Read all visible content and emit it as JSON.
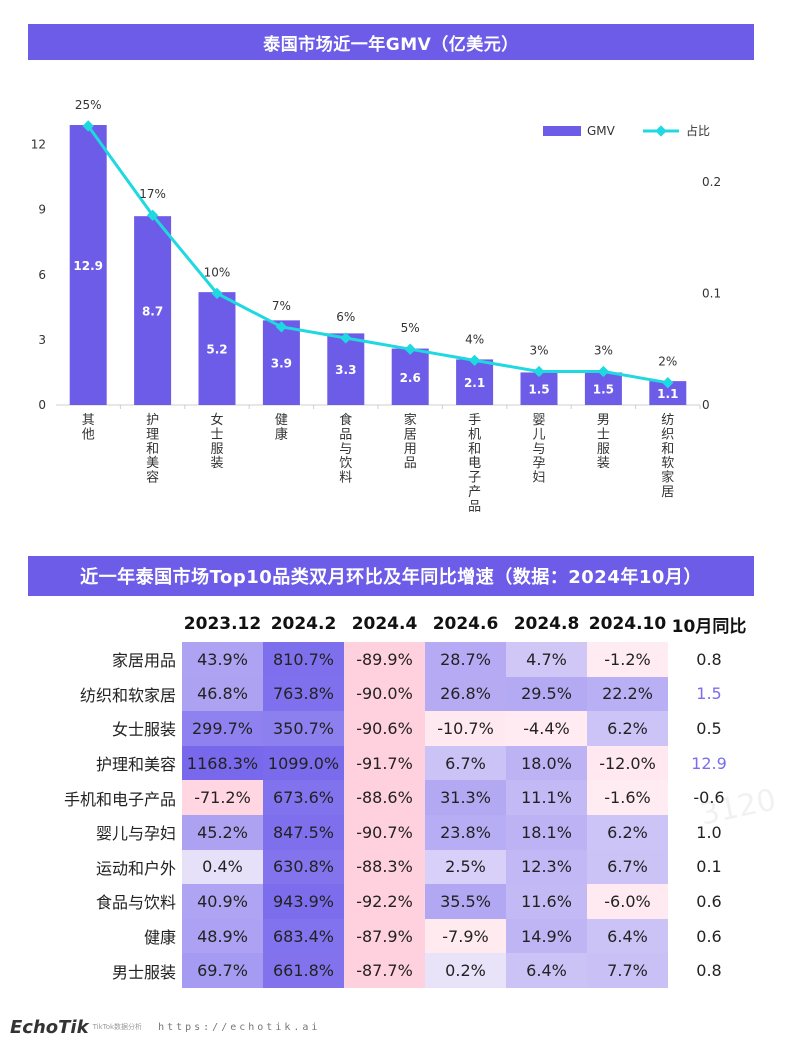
{
  "chart_title": "泰国市场近一年GMV（亿美元）",
  "chart_data": {
    "type": "bar",
    "title": "泰国市场近一年GMV（亿美元）",
    "categories": [
      "其他",
      "护理和美容",
      "女士服装",
      "健康",
      "食品与饮料",
      "家居用品",
      "手机和电子产品",
      "婴儿与孕妇",
      "男士服装",
      "纺织和软家居"
    ],
    "series": [
      {
        "name": "GMV",
        "type": "bar",
        "axis": "left",
        "values": [
          12.9,
          8.7,
          5.2,
          3.9,
          3.3,
          2.6,
          2.1,
          1.5,
          1.5,
          1.1
        ],
        "value_labels": [
          "12.9",
          "8.7",
          "5.2",
          "3.9",
          "3.3",
          "2.6",
          "2.1",
          "1.5",
          "1.5",
          "1.1"
        ],
        "color": "#6c5ce7"
      },
      {
        "name": "占比",
        "type": "line",
        "axis": "right",
        "values": [
          0.25,
          0.17,
          0.1,
          0.07,
          0.06,
          0.05,
          0.04,
          0.03,
          0.03,
          0.02
        ],
        "value_labels": [
          "25%",
          "17%",
          "10%",
          "7%",
          "6%",
          "5%",
          "4%",
          "3%",
          "3%",
          "2%"
        ],
        "color": "#1fd8e0"
      }
    ],
    "y_left": {
      "ticks": [
        0,
        3,
        6,
        9,
        12
      ],
      "tick_labels": [
        "0",
        "3",
        "6",
        "9",
        "12"
      ],
      "range": [
        0,
        13.5
      ]
    },
    "y_right": {
      "ticks": [
        0,
        0.1,
        0.2
      ],
      "tick_labels": [
        "0",
        "0.1",
        "0.2"
      ],
      "range": [
        0,
        0.2625
      ]
    },
    "legend": {
      "position": "top-right",
      "bar_label": "GMV",
      "line_label": "占比"
    },
    "grid": false
  },
  "table": {
    "title": "近一年泰国市场Top10品类双月环比及年同比增速（数据：2024年10月）",
    "headers": [
      "",
      "2023.12",
      "2024.2",
      "2024.4",
      "2024.6",
      "2024.8",
      "2024.10",
      "10月同比"
    ],
    "rows": [
      {
        "category": "家居用品",
        "values": [
          "43.9%",
          "810.7%",
          "-89.9%",
          "28.7%",
          "4.7%",
          "-1.2%"
        ],
        "yoy": "0.8"
      },
      {
        "category": "纺织和软家居",
        "values": [
          "46.8%",
          "763.8%",
          "-90.0%",
          "26.8%",
          "29.5%",
          "22.2%"
        ],
        "yoy": "1.5"
      },
      {
        "category": "女士服装",
        "values": [
          "299.7%",
          "350.7%",
          "-90.6%",
          "-10.7%",
          "-4.4%",
          "6.2%"
        ],
        "yoy": "0.5"
      },
      {
        "category": "护理和美容",
        "values": [
          "1168.3%",
          "1099.0%",
          "-91.7%",
          "6.7%",
          "18.0%",
          "-12.0%"
        ],
        "yoy": "12.9"
      },
      {
        "category": "手机和电子产品",
        "values": [
          "-71.2%",
          "673.6%",
          "-88.6%",
          "31.3%",
          "11.1%",
          "-1.6%"
        ],
        "yoy": "-0.6"
      },
      {
        "category": "婴儿与孕妇",
        "values": [
          "45.2%",
          "847.5%",
          "-90.7%",
          "23.8%",
          "18.1%",
          "6.2%"
        ],
        "yoy": "1.0"
      },
      {
        "category": "运动和户外",
        "values": [
          "0.4%",
          "630.8%",
          "-88.3%",
          "2.5%",
          "12.3%",
          "6.7%"
        ],
        "yoy": "0.1"
      },
      {
        "category": "食品与饮料",
        "values": [
          "40.9%",
          "943.9%",
          "-92.2%",
          "35.5%",
          "11.6%",
          "-6.0%"
        ],
        "yoy": "0.6"
      },
      {
        "category": "健康",
        "values": [
          "48.9%",
          "683.4%",
          "-87.9%",
          "-7.9%",
          "14.9%",
          "6.4%"
        ],
        "yoy": "0.6"
      },
      {
        "category": "男士服装",
        "values": [
          "69.7%",
          "661.8%",
          "-87.7%",
          "0.2%",
          "6.4%",
          "7.7%"
        ],
        "yoy": "0.8"
      }
    ],
    "highlight_yoy_color": "#7b6cf0"
  },
  "footer": {
    "logo": "EchoTik",
    "logo_sub": "TikTok数据分析",
    "url": "https://echotik.ai"
  },
  "colors": {
    "accent": "#6c5ce7",
    "line": "#1fd8e0"
  }
}
